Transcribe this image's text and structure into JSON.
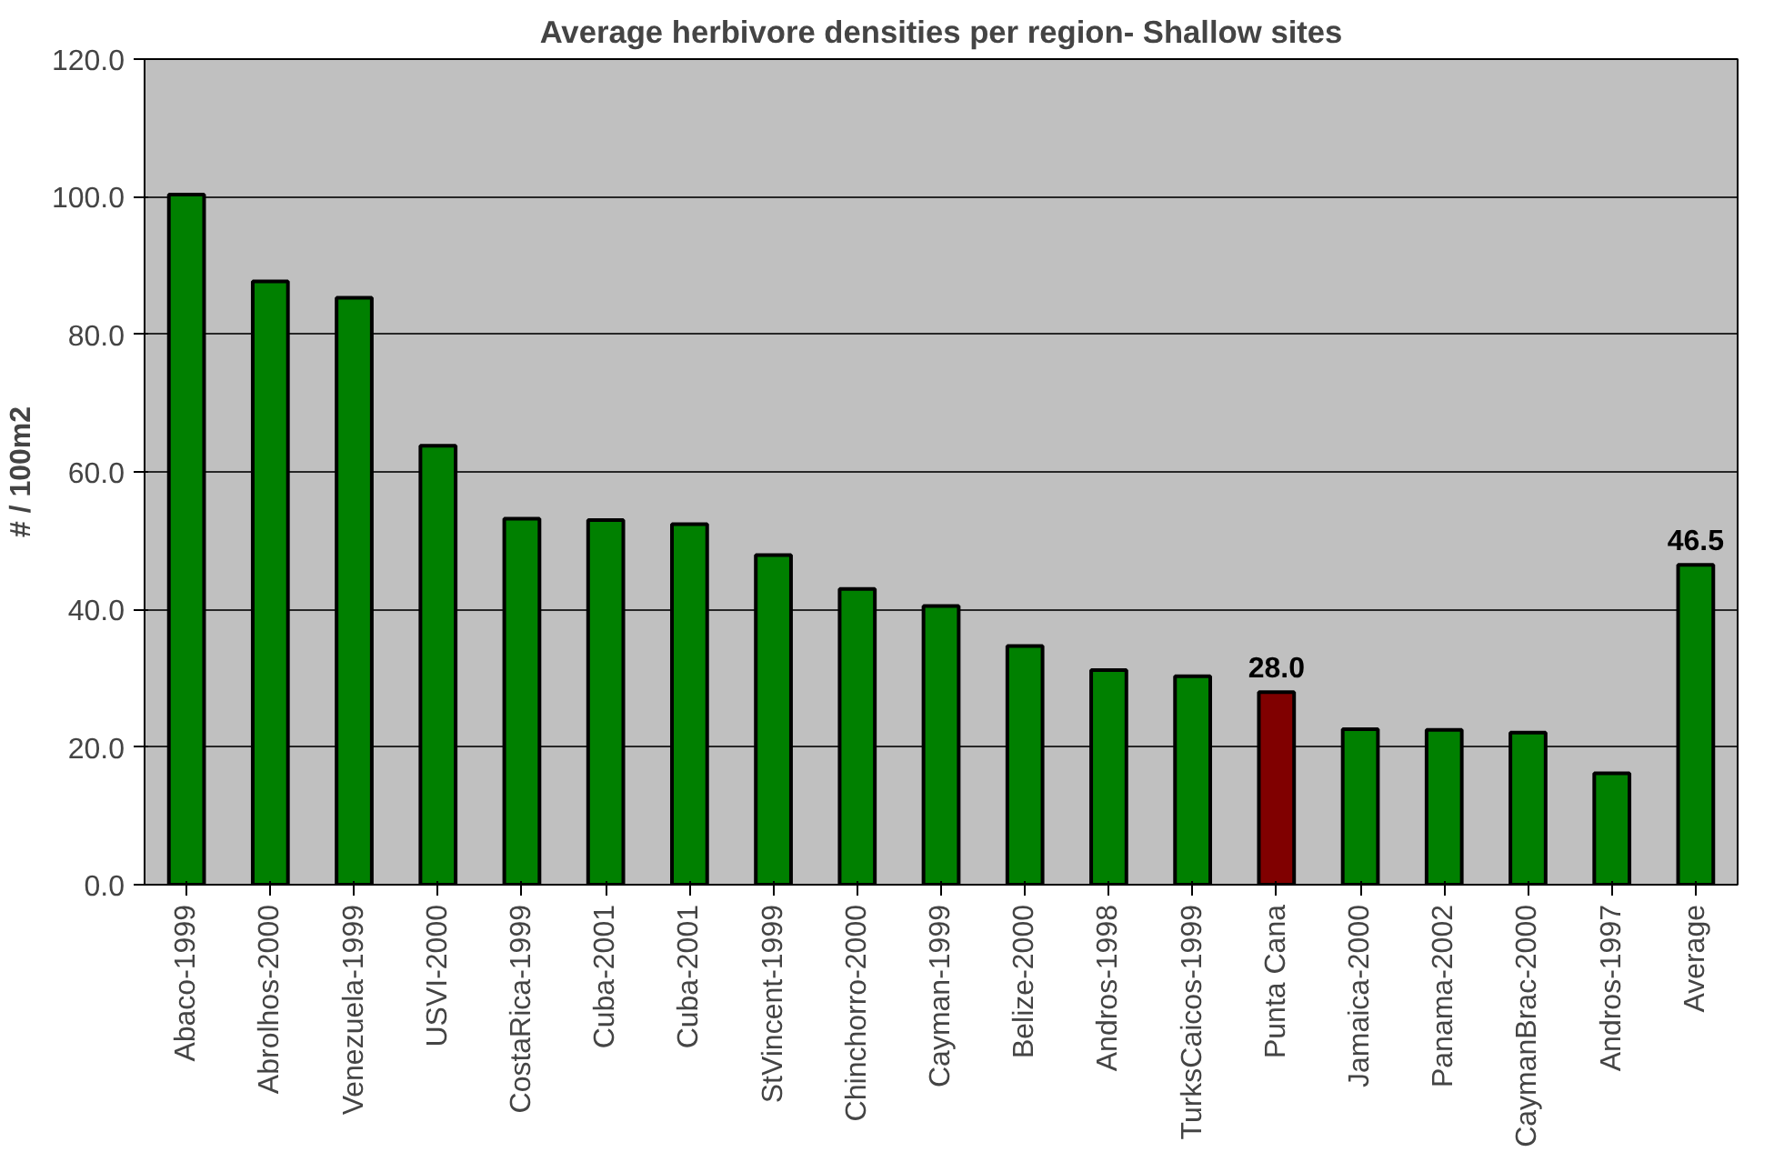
{
  "chart_data": {
    "type": "bar",
    "title": "Average herbivore densities per region- Shallow sites",
    "ylabel": "# / 100m2",
    "categories": [
      "Abaco-1999",
      "Abrolhos-2000",
      "Venezuela-1999",
      "USVI-2000",
      "CostaRica-1999",
      "Cuba-2001",
      "Cuba-2001",
      "StVincent-1999",
      "Chinchorro-2000",
      "Cayman-1999",
      "Belize-2000",
      "Andros-1998",
      "TurksCaicos-1999",
      "Punta Cana",
      "Jamaica-2000",
      "Panama-2002",
      "CaymanBrac-2000",
      "Andros-1997",
      "Average"
    ],
    "values": [
      100.3,
      87.7,
      85.3,
      63.8,
      53.2,
      53.0,
      52.4,
      47.9,
      43.0,
      40.5,
      34.7,
      31.2,
      30.3,
      28.0,
      22.6,
      22.5,
      22.1,
      16.2,
      46.5
    ],
    "colors": [
      "#008000",
      "#008000",
      "#008000",
      "#008000",
      "#008000",
      "#008000",
      "#008000",
      "#008000",
      "#008000",
      "#008000",
      "#008000",
      "#008000",
      "#008000",
      "#800000",
      "#008000",
      "#008000",
      "#008000",
      "#008000",
      "#008000"
    ],
    "value_labels": [
      null,
      null,
      null,
      null,
      null,
      null,
      null,
      null,
      null,
      null,
      null,
      null,
      null,
      "28.0",
      null,
      null,
      null,
      null,
      "46.5"
    ],
    "ylim": [
      0,
      120
    ],
    "yticks": [
      {
        "value": 0,
        "label": "0.0"
      },
      {
        "value": 20,
        "label": "20.0"
      },
      {
        "value": 40,
        "label": "40.0"
      },
      {
        "value": 60,
        "label": "60.0"
      },
      {
        "value": 80,
        "label": "80.0"
      },
      {
        "value": 100,
        "label": "100.0"
      },
      {
        "value": 120,
        "label": "120.0"
      }
    ],
    "grid": "y"
  }
}
